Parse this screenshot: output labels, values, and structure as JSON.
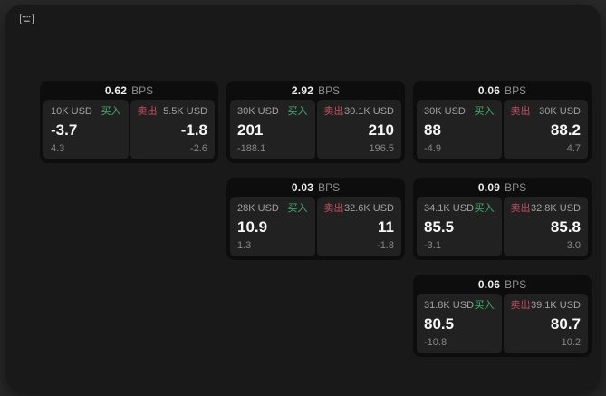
{
  "page": {
    "background": "#292929",
    "panel_background": "#191919",
    "card_background": "#0d0d0d",
    "tile_background": "#212121"
  },
  "colors": {
    "buy_green": "#3fae6a",
    "sell_red": "#c24b61",
    "primary_text": "#f7f7f7",
    "secondary_text": "#8d8d8d"
  },
  "icons": {
    "top_left": "keyboard-icon"
  },
  "labels": {
    "bps_unit": "BPS",
    "buy": "买入",
    "sell": "卖出"
  },
  "cards": [
    {
      "col": 1,
      "row": 1,
      "bps": "0.62",
      "buy": {
        "amount": "10K USD",
        "main": "-3.7",
        "sub": "4.3"
      },
      "sell": {
        "amount": "5.5K USD",
        "main": "-1.8",
        "sub": "-2.6"
      }
    },
    {
      "col": 2,
      "row": 1,
      "bps": "2.92",
      "buy": {
        "amount": "30K USD",
        "main": "201",
        "sub": "-188.1"
      },
      "sell": {
        "amount": "30.1K USD",
        "main": "210",
        "sub": "196.5"
      }
    },
    {
      "col": 3,
      "row": 1,
      "bps": "0.06",
      "buy": {
        "amount": "30K USD",
        "main": "88",
        "sub": "-4.9"
      },
      "sell": {
        "amount": "30K USD",
        "main": "88.2",
        "sub": "4.7"
      }
    },
    {
      "col": 2,
      "row": 2,
      "bps": "0.03",
      "buy": {
        "amount": "28K USD",
        "main": "10.9",
        "sub": "1.3"
      },
      "sell": {
        "amount": "32.6K USD",
        "main": "11",
        "sub": "-1.8"
      }
    },
    {
      "col": 3,
      "row": 2,
      "bps": "0.09",
      "buy": {
        "amount": "34.1K USD",
        "main": "85.5",
        "sub": "-3.1"
      },
      "sell": {
        "amount": "32.8K USD",
        "main": "85.8",
        "sub": "3.0"
      }
    },
    {
      "col": 3,
      "row": 3,
      "bps": "0.06",
      "buy": {
        "amount": "31.8K USD",
        "main": "80.5",
        "sub": "-10.8"
      },
      "sell": {
        "amount": "39.1K USD",
        "main": "80.7",
        "sub": "10.2"
      }
    }
  ]
}
